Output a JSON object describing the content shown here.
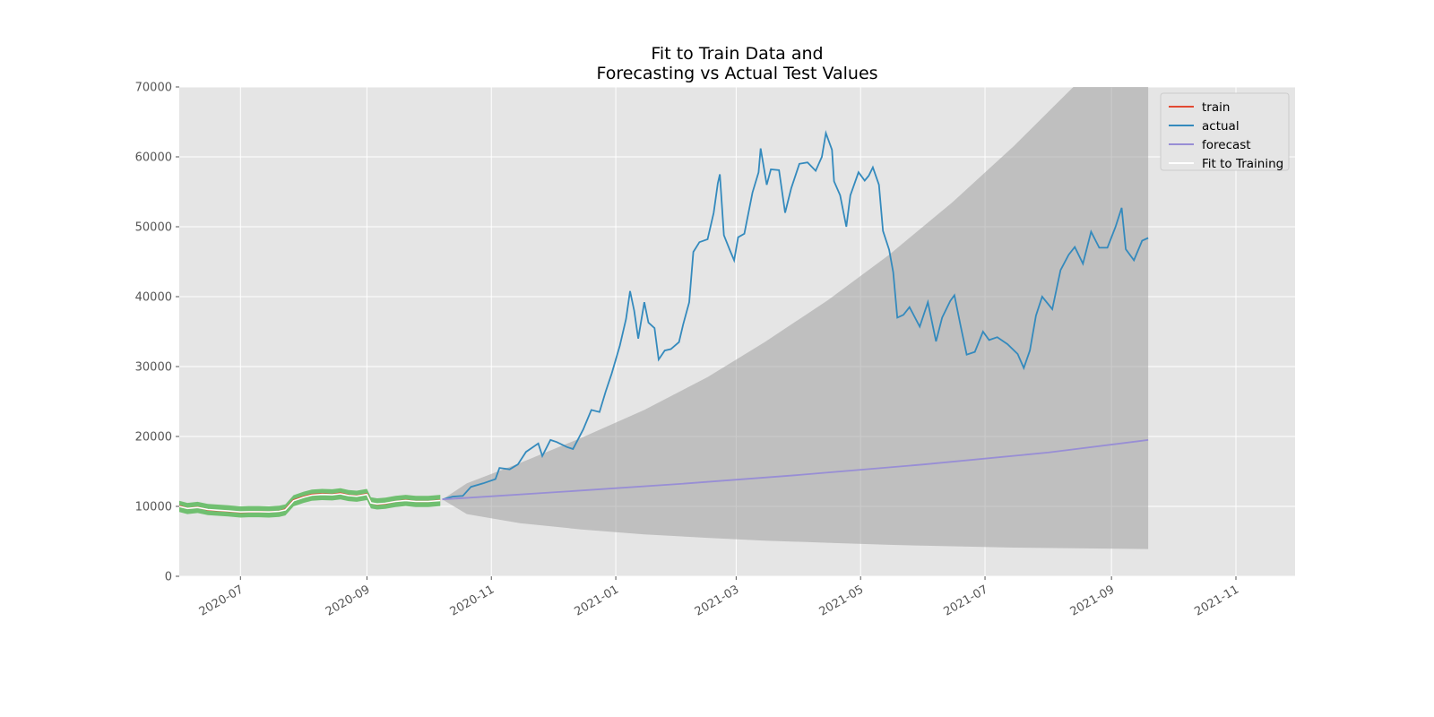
{
  "chart_data": {
    "type": "line",
    "title": [
      "Fit to Train Data and",
      "Forecasting vs Actual Test Values"
    ],
    "xlabel": "",
    "ylabel": "",
    "x_axis": {
      "type": "date",
      "range": [
        "2020-06-01",
        "2021-11-30"
      ],
      "ticks": [
        "2020-07-01",
        "2020-09-01",
        "2020-11-01",
        "2021-01-01",
        "2021-03-01",
        "2021-05-01",
        "2021-07-01",
        "2021-09-01",
        "2021-11-01"
      ],
      "tick_labels": [
        "2020-07",
        "2020-09",
        "2020-11",
        "2021-01",
        "2021-03",
        "2021-05",
        "2021-07",
        "2021-09",
        "2021-11"
      ]
    },
    "y_axis": {
      "range": [
        0,
        70000
      ],
      "ticks": [
        0,
        10000,
        20000,
        30000,
        40000,
        50000,
        60000,
        70000
      ],
      "tick_labels": [
        "0",
        "10000",
        "20000",
        "30000",
        "40000",
        "50000",
        "60000",
        "70000"
      ]
    },
    "grid": true,
    "legend_position": "top-right",
    "legend": [
      "train",
      "actual",
      "forecast",
      "Fit to Training"
    ],
    "colors": {
      "train": "#E24A33",
      "actual": "#348ABD",
      "forecast": "#988ED5",
      "fit": "#ffffff",
      "fit_band": "#5cb85c",
      "confidence_band": "#a0a0a0",
      "plot_background": "#E5E5E5",
      "grid": "#ffffff"
    },
    "series": [
      {
        "name": "train",
        "points": [
          [
            "2020-06-01",
            10100
          ],
          [
            "2020-06-05",
            9700
          ],
          [
            "2020-06-10",
            9900
          ],
          [
            "2020-06-15",
            9500
          ],
          [
            "2020-06-20",
            9400
          ],
          [
            "2020-06-25",
            9300
          ],
          [
            "2020-07-01",
            9150
          ],
          [
            "2020-07-05",
            9200
          ],
          [
            "2020-07-10",
            9250
          ],
          [
            "2020-07-15",
            9200
          ],
          [
            "2020-07-20",
            9300
          ],
          [
            "2020-07-23",
            9600
          ],
          [
            "2020-07-27",
            10900
          ],
          [
            "2020-08-01",
            11400
          ],
          [
            "2020-08-05",
            11700
          ],
          [
            "2020-08-10",
            11800
          ],
          [
            "2020-08-15",
            11700
          ],
          [
            "2020-08-19",
            11900
          ],
          [
            "2020-08-23",
            11600
          ],
          [
            "2020-08-27",
            11500
          ],
          [
            "2020-09-01",
            11800
          ],
          [
            "2020-09-03",
            10500
          ],
          [
            "2020-09-06",
            10300
          ],
          [
            "2020-09-10",
            10400
          ],
          [
            "2020-09-15",
            10700
          ],
          [
            "2020-09-20",
            10900
          ],
          [
            "2020-09-25",
            10700
          ],
          [
            "2020-10-01",
            10700
          ],
          [
            "2020-10-07",
            10900
          ]
        ]
      },
      {
        "name": "actual",
        "points": [
          [
            "2020-10-08",
            11000
          ],
          [
            "2020-10-13",
            11400
          ],
          [
            "2020-10-18",
            11500
          ],
          [
            "2020-10-22",
            12800
          ],
          [
            "2020-10-28",
            13300
          ],
          [
            "2020-11-03",
            13900
          ],
          [
            "2020-11-05",
            15500
          ],
          [
            "2020-11-10",
            15300
          ],
          [
            "2020-11-14",
            16000
          ],
          [
            "2020-11-18",
            17800
          ],
          [
            "2020-11-24",
            19000
          ],
          [
            "2020-11-26",
            17200
          ],
          [
            "2020-11-30",
            19500
          ],
          [
            "2020-12-03",
            19200
          ],
          [
            "2020-12-08",
            18500
          ],
          [
            "2020-12-11",
            18200
          ],
          [
            "2020-12-16",
            21000
          ],
          [
            "2020-12-20",
            23800
          ],
          [
            "2020-12-24",
            23500
          ],
          [
            "2020-12-27",
            26400
          ],
          [
            "2020-12-30",
            29000
          ],
          [
            "2021-01-03",
            33000
          ],
          [
            "2021-01-06",
            36800
          ],
          [
            "2021-01-08",
            40800
          ],
          [
            "2021-01-10",
            38000
          ],
          [
            "2021-01-12",
            34000
          ],
          [
            "2021-01-15",
            39200
          ],
          [
            "2021-01-17",
            36300
          ],
          [
            "2021-01-20",
            35500
          ],
          [
            "2021-01-22",
            31000
          ],
          [
            "2021-01-25",
            32300
          ],
          [
            "2021-01-28",
            32500
          ],
          [
            "2021-02-01",
            33500
          ],
          [
            "2021-02-03",
            36000
          ],
          [
            "2021-02-06",
            39200
          ],
          [
            "2021-02-08",
            46400
          ],
          [
            "2021-02-11",
            47800
          ],
          [
            "2021-02-15",
            48200
          ],
          [
            "2021-02-18",
            52000
          ],
          [
            "2021-02-20",
            56200
          ],
          [
            "2021-02-21",
            57500
          ],
          [
            "2021-02-23",
            48800
          ],
          [
            "2021-02-26",
            46600
          ],
          [
            "2021-02-28",
            45200
          ],
          [
            "2021-03-02",
            48500
          ],
          [
            "2021-03-05",
            49000
          ],
          [
            "2021-03-09",
            54900
          ],
          [
            "2021-03-12",
            57800
          ],
          [
            "2021-03-13",
            61200
          ],
          [
            "2021-03-16",
            56000
          ],
          [
            "2021-03-18",
            58200
          ],
          [
            "2021-03-22",
            58100
          ],
          [
            "2021-03-25",
            52000
          ],
          [
            "2021-03-28",
            55500
          ],
          [
            "2021-04-01",
            59000
          ],
          [
            "2021-04-05",
            59200
          ],
          [
            "2021-04-09",
            58000
          ],
          [
            "2021-04-12",
            60000
          ],
          [
            "2021-04-14",
            63400
          ],
          [
            "2021-04-17",
            61000
          ],
          [
            "2021-04-18",
            56500
          ],
          [
            "2021-04-21",
            54500
          ],
          [
            "2021-04-24",
            50000
          ],
          [
            "2021-04-26",
            54500
          ],
          [
            "2021-04-30",
            57800
          ],
          [
            "2021-05-03",
            56600
          ],
          [
            "2021-05-05",
            57300
          ],
          [
            "2021-05-07",
            58500
          ],
          [
            "2021-05-10",
            56000
          ],
          [
            "2021-05-12",
            49400
          ],
          [
            "2021-05-15",
            46700
          ],
          [
            "2021-05-17",
            43500
          ],
          [
            "2021-05-19",
            37000
          ],
          [
            "2021-05-22",
            37400
          ],
          [
            "2021-05-25",
            38500
          ],
          [
            "2021-05-30",
            35700
          ],
          [
            "2021-06-03",
            39200
          ],
          [
            "2021-06-07",
            33600
          ],
          [
            "2021-06-10",
            37000
          ],
          [
            "2021-06-14",
            39400
          ],
          [
            "2021-06-16",
            40200
          ],
          [
            "2021-06-19",
            35900
          ],
          [
            "2021-06-22",
            31700
          ],
          [
            "2021-06-26",
            32100
          ],
          [
            "2021-06-30",
            35000
          ],
          [
            "2021-07-03",
            33800
          ],
          [
            "2021-07-07",
            34200
          ],
          [
            "2021-07-12",
            33200
          ],
          [
            "2021-07-17",
            31800
          ],
          [
            "2021-07-20",
            29800
          ],
          [
            "2021-07-23",
            32300
          ],
          [
            "2021-07-26",
            37300
          ],
          [
            "2021-07-29",
            40000
          ],
          [
            "2021-08-03",
            38200
          ],
          [
            "2021-08-07",
            43800
          ],
          [
            "2021-08-11",
            46000
          ],
          [
            "2021-08-14",
            47100
          ],
          [
            "2021-08-18",
            44700
          ],
          [
            "2021-08-22",
            49300
          ],
          [
            "2021-08-26",
            47000
          ],
          [
            "2021-08-30",
            47000
          ],
          [
            "2021-09-03",
            50000
          ],
          [
            "2021-09-06",
            52700
          ],
          [
            "2021-09-08",
            46800
          ],
          [
            "2021-09-12",
            45200
          ],
          [
            "2021-09-16",
            48000
          ],
          [
            "2021-09-19",
            48400
          ]
        ]
      },
      {
        "name": "forecast",
        "points": [
          [
            "2020-10-08",
            11000
          ],
          [
            "2020-12-01",
            12000
          ],
          [
            "2021-02-01",
            13200
          ],
          [
            "2021-04-01",
            14500
          ],
          [
            "2021-06-01",
            16000
          ],
          [
            "2021-08-01",
            17700
          ],
          [
            "2021-09-19",
            19500
          ]
        ]
      },
      {
        "name": "Fit to Training",
        "points": [
          [
            "2020-06-01",
            10000
          ],
          [
            "2020-06-05",
            9700
          ],
          [
            "2020-06-10",
            9850
          ],
          [
            "2020-06-15",
            9550
          ],
          [
            "2020-06-20",
            9450
          ],
          [
            "2020-06-25",
            9350
          ],
          [
            "2020-07-01",
            9200
          ],
          [
            "2020-07-05",
            9250
          ],
          [
            "2020-07-10",
            9250
          ],
          [
            "2020-07-15",
            9200
          ],
          [
            "2020-07-20",
            9300
          ],
          [
            "2020-07-23",
            9500
          ],
          [
            "2020-07-27",
            10800
          ],
          [
            "2020-08-01",
            11300
          ],
          [
            "2020-08-05",
            11600
          ],
          [
            "2020-08-10",
            11700
          ],
          [
            "2020-08-15",
            11650
          ],
          [
            "2020-08-19",
            11800
          ],
          [
            "2020-08-23",
            11550
          ],
          [
            "2020-08-27",
            11450
          ],
          [
            "2020-09-01",
            11700
          ],
          [
            "2020-09-03",
            10500
          ],
          [
            "2020-09-06",
            10350
          ],
          [
            "2020-09-10",
            10450
          ],
          [
            "2020-09-15",
            10700
          ],
          [
            "2020-09-20",
            10850
          ],
          [
            "2020-09-25",
            10700
          ],
          [
            "2020-10-01",
            10700
          ],
          [
            "2020-10-07",
            10850
          ]
        ],
        "band_halfwidth": 800
      }
    ],
    "confidence_interval": {
      "points": [
        [
          "2020-10-08",
          11000,
          11000
        ],
        [
          "2020-10-20",
          8900,
          13300
        ],
        [
          "2020-11-15",
          7600,
          16200
        ],
        [
          "2020-12-15",
          6700,
          19800
        ],
        [
          "2021-01-15",
          6000,
          23800
        ],
        [
          "2021-02-15",
          5500,
          28500
        ],
        [
          "2021-03-15",
          5100,
          33500
        ],
        [
          "2021-04-15",
          4800,
          39500
        ],
        [
          "2021-05-15",
          4500,
          46000
        ],
        [
          "2021-06-15",
          4300,
          53500
        ],
        [
          "2021-07-15",
          4100,
          61500
        ],
        [
          "2021-08-15",
          4000,
          70500
        ],
        [
          "2021-09-19",
          3900,
          81000
        ]
      ]
    }
  }
}
